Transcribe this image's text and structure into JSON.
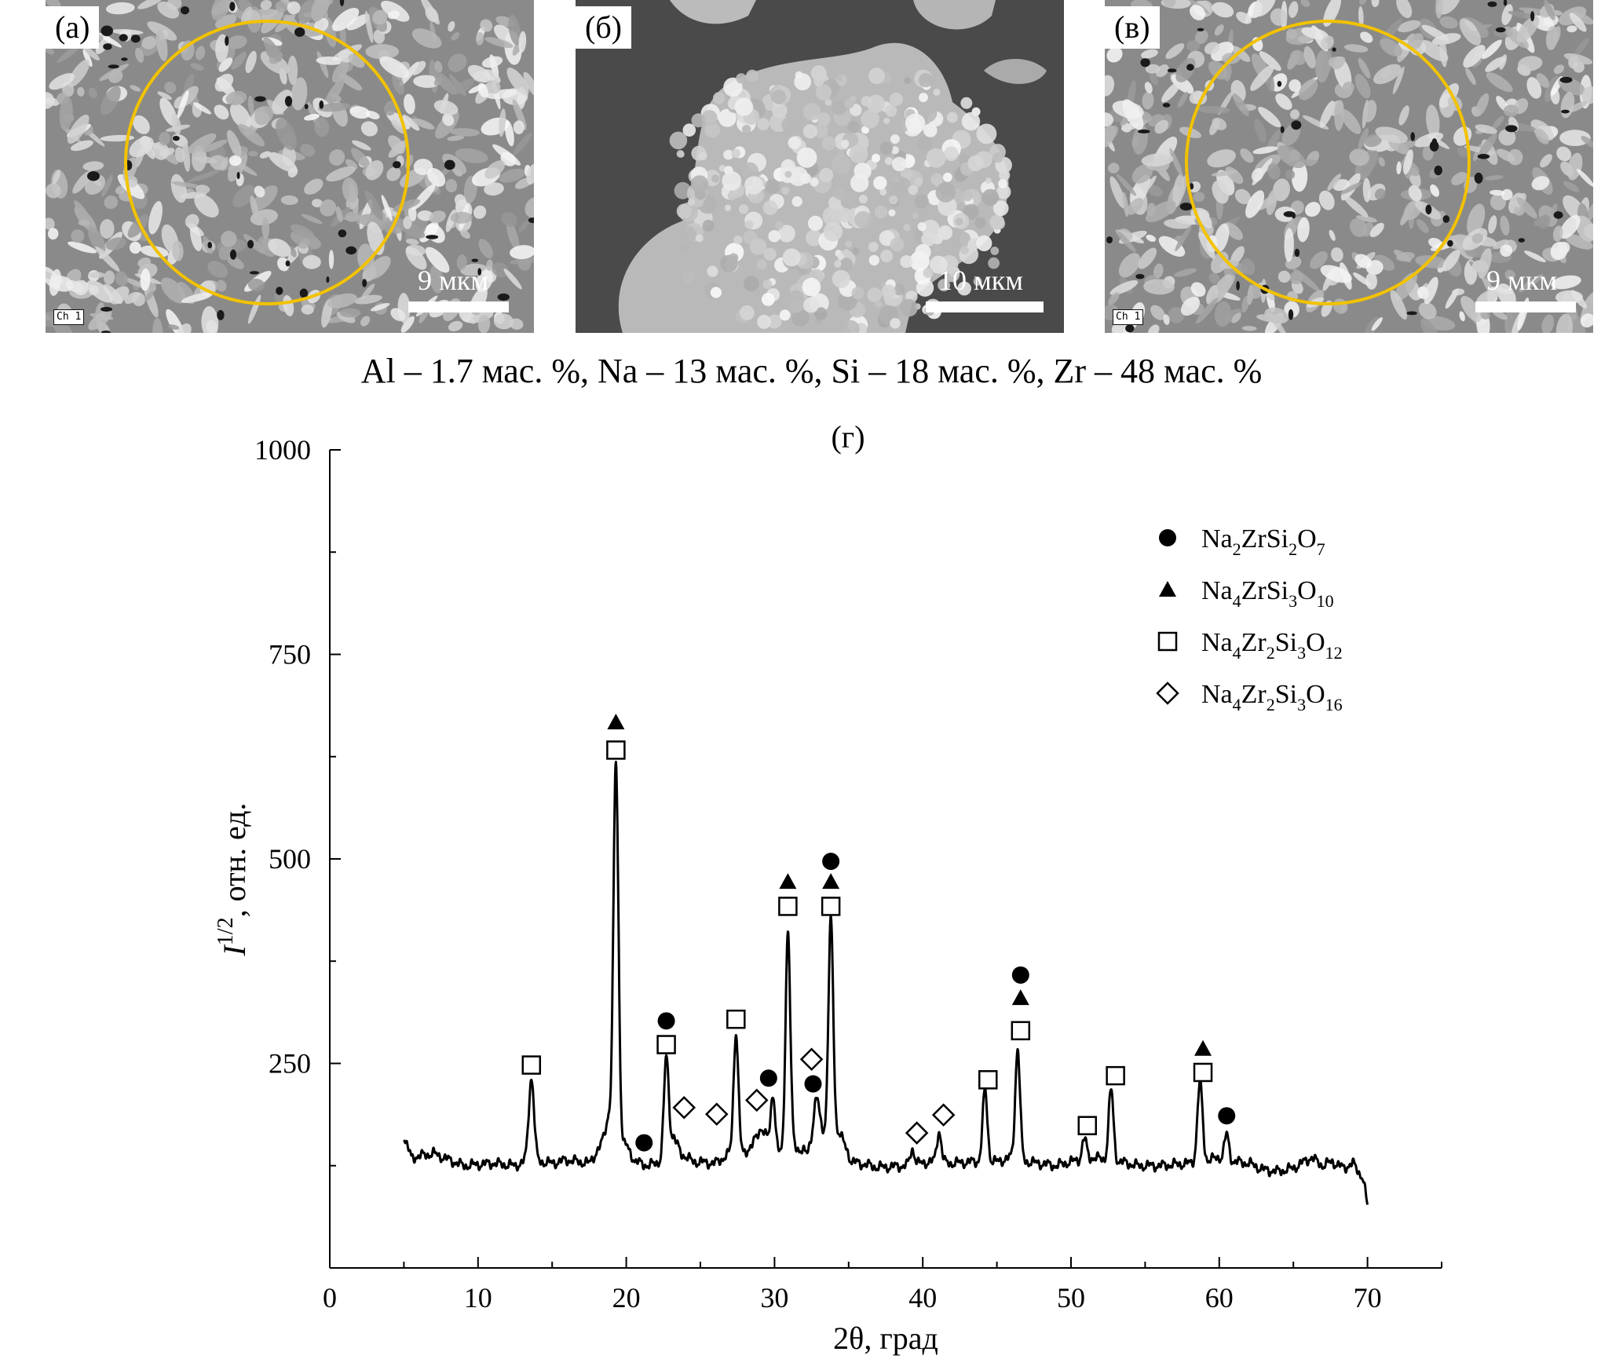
{
  "panels": [
    {
      "label": "(а)",
      "scale": "9 мкм",
      "channel": "Ch 1"
    },
    {
      "label": "(б)",
      "scale": "10 мкм"
    },
    {
      "label": "(в)",
      "scale": "9 мкм",
      "channel": "Ch 1"
    }
  ],
  "composition": "Al – 1.7 мас. %, Na – 13 мас. %, Si – 18 мас. %, Zr – 48 мас. %",
  "colors": {
    "circle": "#f2c200",
    "line": "#000000"
  },
  "chart_data": {
    "type": "line",
    "title": "(г)",
    "xlabel": "2θ, град",
    "ylabel": "I^1/2, отн. ед.",
    "ylabel_parts": {
      "var": "I",
      "sup": "1/2",
      "rest": ", отн. ед."
    },
    "xlim": [
      0,
      75
    ],
    "ylim": [
      0,
      1000
    ],
    "xticks": [
      0,
      10,
      20,
      30,
      40,
      50,
      60,
      70
    ],
    "yticks": [
      250,
      500,
      750,
      1000
    ],
    "grid": false,
    "legend_position": "top-right",
    "legend": [
      {
        "marker": "circle",
        "parts": [
          [
            "Na",
            ""
          ],
          [
            "2",
            "sub"
          ],
          [
            "ZrSi",
            ""
          ],
          [
            "2",
            "sub"
          ],
          [
            "O",
            ""
          ],
          [
            "7",
            "sub"
          ]
        ]
      },
      {
        "marker": "triangle",
        "parts": [
          [
            "Na",
            ""
          ],
          [
            "4",
            "sub"
          ],
          [
            "ZrSi",
            ""
          ],
          [
            "3",
            "sub"
          ],
          [
            "O",
            ""
          ],
          [
            "10",
            "sub"
          ]
        ]
      },
      {
        "marker": "square",
        "parts": [
          [
            "Na",
            ""
          ],
          [
            "4",
            "sub"
          ],
          [
            "Zr",
            ""
          ],
          [
            "2",
            "sub"
          ],
          [
            "Si",
            ""
          ],
          [
            "3",
            "sub"
          ],
          [
            "O",
            ""
          ],
          [
            "12",
            "sub"
          ]
        ]
      },
      {
        "marker": "diamond",
        "parts": [
          [
            "Na",
            ""
          ],
          [
            "4",
            "sub"
          ],
          [
            "Zr",
            ""
          ],
          [
            "2",
            "sub"
          ],
          [
            "Si",
            ""
          ],
          [
            "3",
            "sub"
          ],
          [
            "O",
            ""
          ],
          [
            "16",
            "sub"
          ]
        ]
      }
    ],
    "baseline": [
      [
        5,
        160
      ],
      [
        5.5,
        135
      ],
      [
        7,
        140
      ],
      [
        9,
        125
      ],
      [
        11,
        128
      ],
      [
        12.5,
        125
      ],
      [
        13.2,
        130
      ],
      [
        14.2,
        130
      ],
      [
        15,
        128
      ],
      [
        16,
        132
      ],
      [
        17.5,
        128
      ],
      [
        18.3,
        150
      ],
      [
        18.8,
        185
      ],
      [
        19.1,
        150
      ],
      [
        20,
        150
      ],
      [
        20.6,
        130
      ],
      [
        21.5,
        125
      ],
      [
        22.3,
        130
      ],
      [
        23.2,
        160
      ],
      [
        23.7,
        140
      ],
      [
        24.5,
        130
      ],
      [
        26,
        128
      ],
      [
        27,
        140
      ],
      [
        27.9,
        140
      ],
      [
        28.5,
        150
      ],
      [
        29.1,
        172
      ],
      [
        29.4,
        162
      ],
      [
        30.6,
        135
      ],
      [
        31.2,
        150
      ],
      [
        32.2,
        140
      ],
      [
        32.9,
        185
      ],
      [
        33.4,
        165
      ],
      [
        34.4,
        165
      ],
      [
        35.2,
        130
      ],
      [
        37,
        123
      ],
      [
        39,
        125
      ],
      [
        40.5,
        130
      ],
      [
        42,
        128
      ],
      [
        43.5,
        130
      ],
      [
        45,
        130
      ],
      [
        46,
        135
      ],
      [
        47,
        130
      ],
      [
        49,
        125
      ],
      [
        50,
        130
      ],
      [
        51.6,
        135
      ],
      [
        52.3,
        132
      ],
      [
        53.3,
        130
      ],
      [
        54.5,
        125
      ],
      [
        56,
        125
      ],
      [
        58,
        128
      ],
      [
        59.3,
        132
      ],
      [
        60,
        135
      ],
      [
        61,
        130
      ],
      [
        62,
        128
      ],
      [
        63,
        120
      ],
      [
        64,
        118
      ],
      [
        65,
        122
      ],
      [
        66.2,
        135
      ],
      [
        67,
        125
      ],
      [
        67.6,
        130
      ],
      [
        68.4,
        122
      ],
      [
        69,
        128
      ],
      [
        69.7,
        110
      ],
      [
        70,
        75
      ]
    ],
    "peaks": [
      {
        "x": 13.6,
        "y": 232,
        "w": 0.18
      },
      {
        "x": 19.3,
        "y": 618,
        "w": 0.17
      },
      {
        "x": 22.7,
        "y": 258,
        "w": 0.16
      },
      {
        "x": 27.4,
        "y": 288,
        "w": 0.16
      },
      {
        "x": 29.9,
        "y": 214,
        "w": 0.14
      },
      {
        "x": 30.9,
        "y": 412,
        "w": 0.16
      },
      {
        "x": 32.8,
        "y": 205,
        "w": 0.16
      },
      {
        "x": 33.8,
        "y": 425,
        "w": 0.16
      },
      {
        "x": 39.3,
        "y": 145,
        "w": 0.15
      },
      {
        "x": 41.1,
        "y": 167,
        "w": 0.15
      },
      {
        "x": 44.2,
        "y": 217,
        "w": 0.16
      },
      {
        "x": 46.4,
        "y": 268,
        "w": 0.16
      },
      {
        "x": 50.9,
        "y": 158,
        "w": 0.15
      },
      {
        "x": 52.7,
        "y": 218,
        "w": 0.16
      },
      {
        "x": 58.7,
        "y": 227,
        "w": 0.17
      },
      {
        "x": 60.5,
        "y": 163,
        "w": 0.15
      }
    ],
    "markers": [
      {
        "type": "square",
        "x": 13.6,
        "y": 248
      },
      {
        "type": "triangle",
        "x": 19.3,
        "y": 667
      },
      {
        "type": "square",
        "x": 19.3,
        "y": 633
      },
      {
        "type": "circle",
        "x": 21.2,
        "y": 153
      },
      {
        "type": "circle",
        "x": 22.7,
        "y": 302
      },
      {
        "type": "square",
        "x": 22.7,
        "y": 273
      },
      {
        "type": "diamond",
        "x": 23.9,
        "y": 196
      },
      {
        "type": "diamond",
        "x": 26.1,
        "y": 188
      },
      {
        "type": "square",
        "x": 27.4,
        "y": 304
      },
      {
        "type": "diamond",
        "x": 28.8,
        "y": 205
      },
      {
        "type": "circle",
        "x": 29.6,
        "y": 232
      },
      {
        "type": "triangle",
        "x": 30.9,
        "y": 472
      },
      {
        "type": "square",
        "x": 30.9,
        "y": 442
      },
      {
        "type": "diamond",
        "x": 32.5,
        "y": 255
      },
      {
        "type": "circle",
        "x": 32.6,
        "y": 225
      },
      {
        "type": "circle",
        "x": 33.8,
        "y": 497
      },
      {
        "type": "triangle",
        "x": 33.8,
        "y": 472
      },
      {
        "type": "square",
        "x": 33.8,
        "y": 442
      },
      {
        "type": "diamond",
        "x": 39.6,
        "y": 165
      },
      {
        "type": "diamond",
        "x": 41.4,
        "y": 187
      },
      {
        "type": "square",
        "x": 44.4,
        "y": 230
      },
      {
        "type": "circle",
        "x": 46.6,
        "y": 358
      },
      {
        "type": "triangle",
        "x": 46.6,
        "y": 330
      },
      {
        "type": "square",
        "x": 46.6,
        "y": 290
      },
      {
        "type": "square",
        "x": 51.1,
        "y": 174
      },
      {
        "type": "square",
        "x": 53.0,
        "y": 235
      },
      {
        "type": "triangle",
        "x": 58.9,
        "y": 268
      },
      {
        "type": "square",
        "x": 58.9,
        "y": 239
      },
      {
        "type": "circle",
        "x": 60.5,
        "y": 186
      }
    ]
  }
}
